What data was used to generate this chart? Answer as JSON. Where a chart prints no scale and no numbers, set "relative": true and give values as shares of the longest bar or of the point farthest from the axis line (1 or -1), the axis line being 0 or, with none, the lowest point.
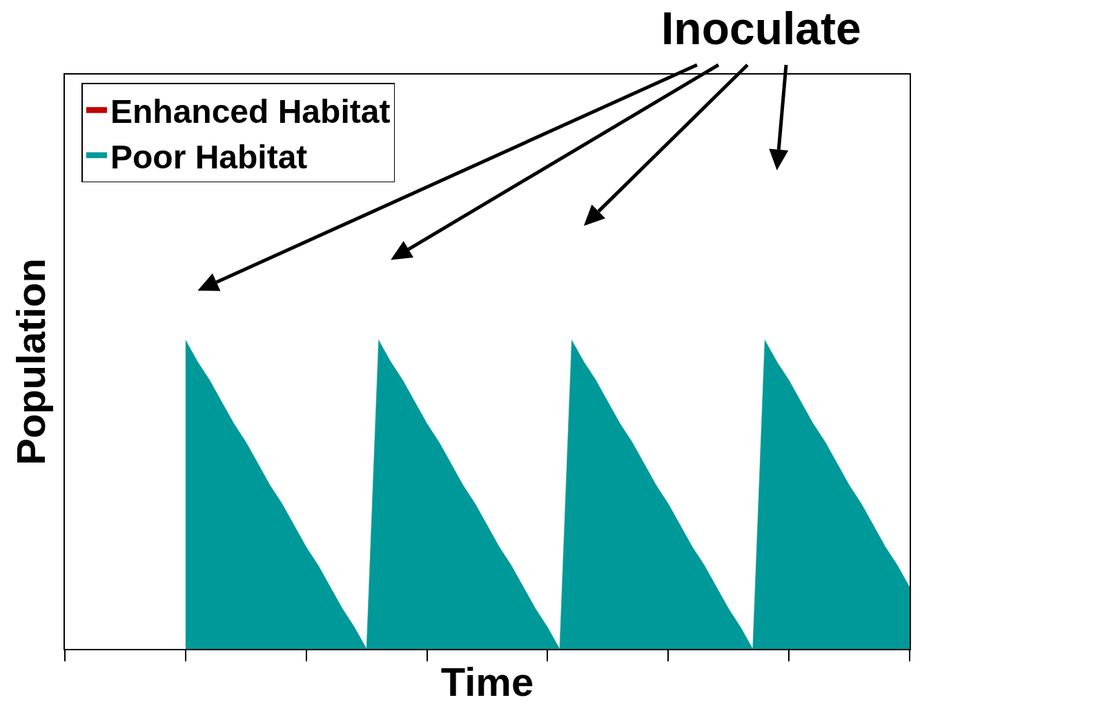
{
  "chart_data": {
    "type": "area",
    "relative": true,
    "xlabel": "Time",
    "ylabel": "Population",
    "annotations": [
      "Inoculate"
    ],
    "legend": "top left",
    "categories": [
      null,
      null,
      null,
      null,
      null,
      null,
      null,
      null,
      null,
      null,
      null,
      null,
      null,
      null,
      null,
      null,
      null,
      null,
      null,
      null,
      null,
      null,
      null,
      null,
      null,
      null,
      null,
      null,
      null,
      null,
      null,
      null,
      null,
      null,
      null,
      null,
      null,
      null,
      null,
      null,
      null,
      null,
      null,
      null,
      null,
      null,
      null,
      null,
      null,
      null,
      null,
      null,
      null,
      null,
      null,
      null,
      null,
      null,
      null,
      null,
      null,
      null,
      null,
      null,
      null,
      null,
      null,
      null,
      null,
      null,
      null
    ],
    "series": [
      {
        "name": "Enhanced Habitat",
        "color": "#c00000",
        "values": [
          null,
          null,
          null,
          null,
          null,
          null,
          null,
          null,
          null,
          null,
          null,
          null,
          null,
          null,
          null,
          null,
          null,
          null,
          null,
          null,
          null,
          null,
          null,
          null,
          null,
          null,
          null,
          null,
          null,
          null,
          null,
          null,
          null,
          null,
          null,
          null,
          null,
          null,
          null,
          null,
          null,
          null,
          null,
          null,
          null,
          null,
          null,
          null,
          null,
          null,
          null,
          null,
          null,
          null,
          null,
          null,
          null,
          null,
          null,
          null,
          null,
          null,
          null,
          null,
          null,
          null,
          null,
          null,
          null,
          null,
          null
        ]
      },
      {
        "name": "Poor Habitat",
        "color": "#009999",
        "values": [
          null,
          null,
          null,
          null,
          null,
          null,
          null,
          null,
          null,
          null,
          1,
          0.93,
          0.87,
          0.8,
          0.73,
          0.67,
          0.6,
          0.53,
          0.47,
          0.4,
          0.33,
          0.27,
          0.2,
          0.13,
          0.07,
          0,
          1,
          0.93,
          0.87,
          0.8,
          0.73,
          0.67,
          0.6,
          0.53,
          0.47,
          0.4,
          0.33,
          0.27,
          0.2,
          0.13,
          0.07,
          0,
          1,
          0.93,
          0.87,
          0.8,
          0.73,
          0.67,
          0.6,
          0.53,
          0.47,
          0.4,
          0.33,
          0.27,
          0.2,
          0.13,
          0.07,
          0,
          1,
          0.93,
          0.87,
          0.8,
          0.73,
          0.67,
          0.6,
          0.53,
          0.47,
          0.4,
          0.33,
          0.27,
          0.2
        ]
      }
    ]
  }
}
